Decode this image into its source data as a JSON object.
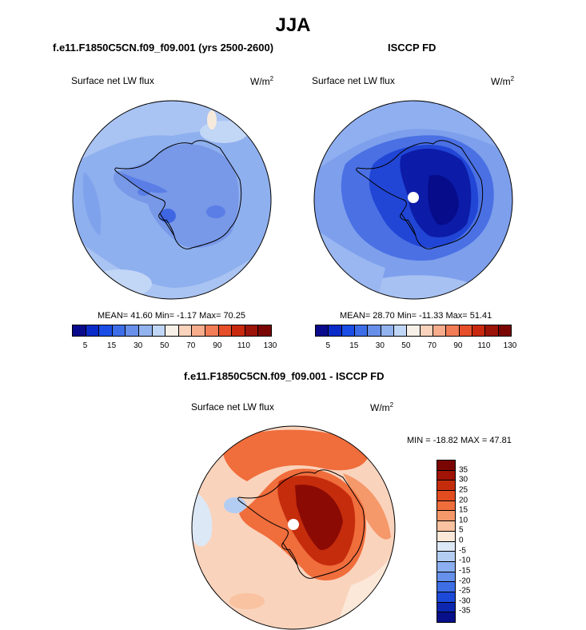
{
  "title": "JJA",
  "panels": [
    {
      "heading": "f.e11.F1850C5CN.f09_f09.001 (yrs 2500-2600)",
      "variable": "Surface net LW flux",
      "units": "W/m",
      "units_exp": "2",
      "stats": "MEAN=  41.60  Min=  -1.17  Max=  70.25",
      "colorbar_ticks": [
        "5",
        "15",
        "30",
        "50",
        "70",
        "90",
        "110",
        "130"
      ]
    },
    {
      "heading": "ISCCP FD",
      "variable": "Surface net LW flux",
      "units": "W/m",
      "units_exp": "2",
      "stats": "MEAN=  28.70  Min= -11.33  Max=  51.41",
      "colorbar_ticks": [
        "5",
        "15",
        "30",
        "50",
        "70",
        "90",
        "110",
        "130"
      ]
    }
  ],
  "diff": {
    "heading": "f.e11.F1850C5CN.f09_f09.001 - ISCCP FD",
    "variable": "Surface net LW flux",
    "units": "W/m",
    "units_exp": "2",
    "stats": "MIN = -18.82 MAX =  47.81",
    "colorbar_ticks": [
      "35",
      "30",
      "25",
      "20",
      "15",
      "10",
      "5",
      "0",
      "-5",
      "-10",
      "-15",
      "-20",
      "-25",
      "-30",
      "-35"
    ]
  },
  "colors": {
    "seq_colorbar": [
      "#0a0a8c",
      "#0b2bc8",
      "#1a4ee6",
      "#3d6ee8",
      "#6890ea",
      "#93b3f0",
      "#c0d6f6",
      "#f6f0e8",
      "#fad3bc",
      "#f7ac8c",
      "#f27c56",
      "#e64f2a",
      "#c8290e",
      "#9c1408",
      "#7a0603"
    ],
    "div_colorbar": [
      "#7a0603",
      "#a11306",
      "#c52c0c",
      "#e24c1f",
      "#f06d3c",
      "#f5986a",
      "#f9c2a0",
      "#fbe8d8",
      "#dce8f6",
      "#b3cdf2",
      "#8aaeef",
      "#6690ea",
      "#3e6ee6",
      "#1d49d8",
      "#0d27b0",
      "#07108a"
    ]
  }
}
